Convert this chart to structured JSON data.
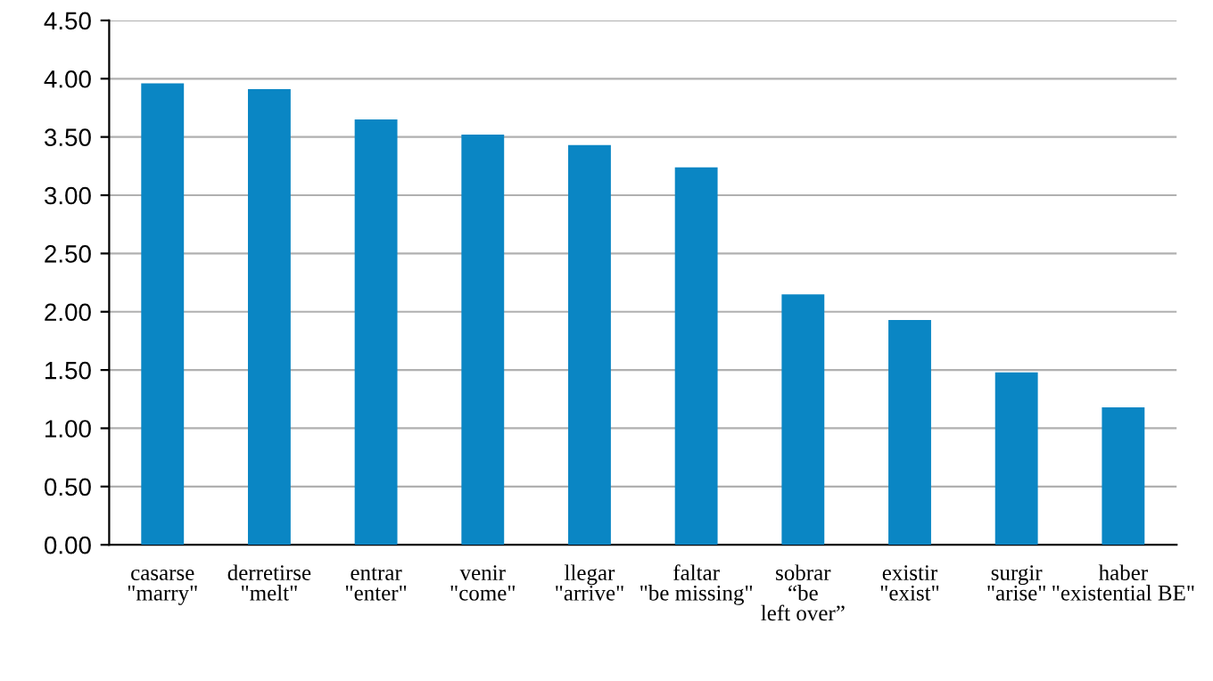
{
  "chart_data": {
    "type": "bar",
    "categories": [
      "casarse\n\"marry\"",
      "derretirse\n\"melt\"",
      "entrar\n\"enter\"",
      "venir\n\"come\"",
      "llegar\n\"arrive\"",
      "faltar\n\"be missing\"",
      "sobrar\n“be\nleft over”",
      "existir\n\"exist\"",
      "surgir\n\"arise\"",
      "haber\n\"existential BE\""
    ],
    "values": [
      3.96,
      3.91,
      3.65,
      3.52,
      3.43,
      3.24,
      2.15,
      1.93,
      1.48,
      1.18
    ],
    "color": "#0a86c4",
    "ylim": [
      0,
      4.5
    ],
    "yticks": [
      {
        "value": 0,
        "label": "0.00"
      },
      {
        "value": 0.5,
        "label": "0.50"
      },
      {
        "value": 1,
        "label": "1.00"
      },
      {
        "value": 1.5,
        "label": "1.50"
      },
      {
        "value": 2,
        "label": "2.00"
      },
      {
        "value": 2.5,
        "label": "2.50"
      },
      {
        "value": 3,
        "label": "3.00"
      },
      {
        "value": 3.5,
        "label": "3.50"
      },
      {
        "value": 4,
        "label": "4.00"
      },
      {
        "value": 4.5,
        "label": "4.50"
      }
    ],
    "grid": "y"
  }
}
